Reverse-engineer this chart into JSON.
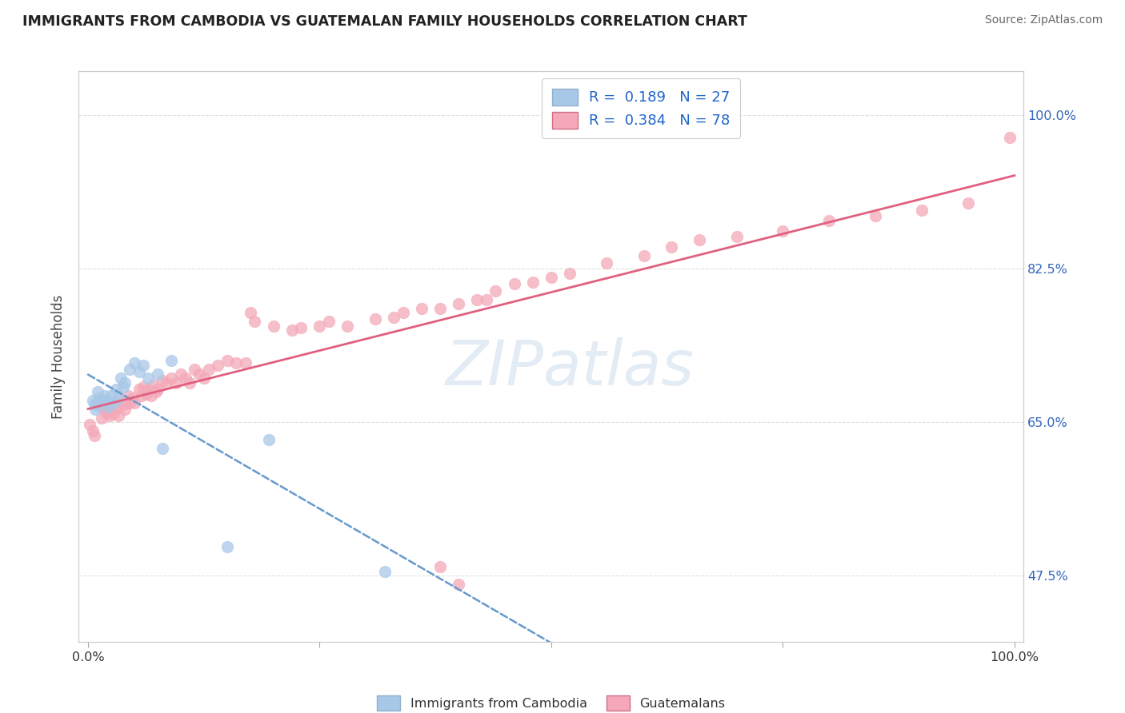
{
  "title": "IMMIGRANTS FROM CAMBODIA VS GUATEMALAN FAMILY HOUSEHOLDS CORRELATION CHART",
  "source": "Source: ZipAtlas.com",
  "ylabel": "Family Households",
  "cambodia_R": 0.189,
  "guatemalan_R": 0.384,
  "cambodia_N": 27,
  "guatemalan_N": 78,
  "background_color": "#ffffff",
  "grid_color": "#e0e0e0",
  "watermark_text": "ZIPatlas",
  "watermark_color": "#c8d8ec",
  "xlim": [
    0.0,
    1.0
  ],
  "ylim": [
    0.4,
    1.05
  ],
  "yticks": [
    0.475,
    0.65,
    0.825,
    1.0
  ],
  "ytick_labels": [
    "47.5%",
    "65.0%",
    "82.5%",
    "100.0%"
  ],
  "xtick_labels_show": [
    "0.0%",
    "100.0%"
  ],
  "cam_color": "#a8c8e8",
  "cam_edge_color": "#80aad0",
  "gua_color": "#f4a8b8",
  "gua_edge_color": "#e88098",
  "cam_line_color": "#6699cc",
  "gua_line_color": "#e06080",
  "legend_R_color": "#2266cc",
  "legend_N_color": "#2266cc",
  "cam_x": [
    0.005,
    0.007,
    0.008,
    0.01,
    0.012,
    0.015,
    0.018,
    0.02,
    0.022,
    0.025,
    0.028,
    0.03,
    0.032,
    0.035,
    0.038,
    0.04,
    0.045,
    0.05,
    0.055,
    0.06,
    0.065,
    0.075,
    0.08,
    0.09,
    0.15,
    0.195,
    0.32
  ],
  "cam_y": [
    0.675,
    0.67,
    0.665,
    0.685,
    0.678,
    0.672,
    0.68,
    0.675,
    0.668,
    0.68,
    0.672,
    0.688,
    0.678,
    0.7,
    0.69,
    0.695,
    0.71,
    0.718,
    0.708,
    0.715,
    0.7,
    0.705,
    0.62,
    0.72,
    0.508,
    0.63,
    0.48
  ],
  "gua_x": [
    0.002,
    0.005,
    0.007,
    0.01,
    0.013,
    0.015,
    0.018,
    0.02,
    0.023,
    0.025,
    0.028,
    0.03,
    0.033,
    0.035,
    0.038,
    0.04,
    0.043,
    0.045,
    0.048,
    0.05,
    0.055,
    0.058,
    0.06,
    0.063,
    0.065,
    0.068,
    0.07,
    0.073,
    0.075,
    0.08,
    0.085,
    0.09,
    0.095,
    0.1,
    0.105,
    0.11,
    0.115,
    0.12,
    0.125,
    0.13,
    0.14,
    0.15,
    0.16,
    0.17,
    0.175,
    0.18,
    0.2,
    0.22,
    0.23,
    0.25,
    0.26,
    0.28,
    0.31,
    0.33,
    0.34,
    0.36,
    0.38,
    0.4,
    0.42,
    0.43,
    0.44,
    0.46,
    0.48,
    0.5,
    0.52,
    0.56,
    0.6,
    0.63,
    0.66,
    0.7,
    0.75,
    0.8,
    0.85,
    0.9,
    0.95,
    0.995,
    0.38,
    0.4
  ],
  "gua_y": [
    0.648,
    0.64,
    0.635,
    0.672,
    0.668,
    0.655,
    0.668,
    0.66,
    0.658,
    0.665,
    0.66,
    0.668,
    0.658,
    0.675,
    0.67,
    0.665,
    0.68,
    0.672,
    0.678,
    0.672,
    0.688,
    0.68,
    0.69,
    0.682,
    0.688,
    0.68,
    0.692,
    0.685,
    0.688,
    0.698,
    0.695,
    0.7,
    0.695,
    0.705,
    0.7,
    0.695,
    0.71,
    0.705,
    0.7,
    0.71,
    0.715,
    0.72,
    0.718,
    0.718,
    0.775,
    0.765,
    0.76,
    0.755,
    0.758,
    0.76,
    0.765,
    0.76,
    0.768,
    0.77,
    0.775,
    0.78,
    0.78,
    0.785,
    0.79,
    0.79,
    0.8,
    0.808,
    0.81,
    0.815,
    0.82,
    0.832,
    0.84,
    0.85,
    0.858,
    0.862,
    0.868,
    0.88,
    0.885,
    0.892,
    0.9,
    0.975,
    0.485,
    0.465
  ]
}
